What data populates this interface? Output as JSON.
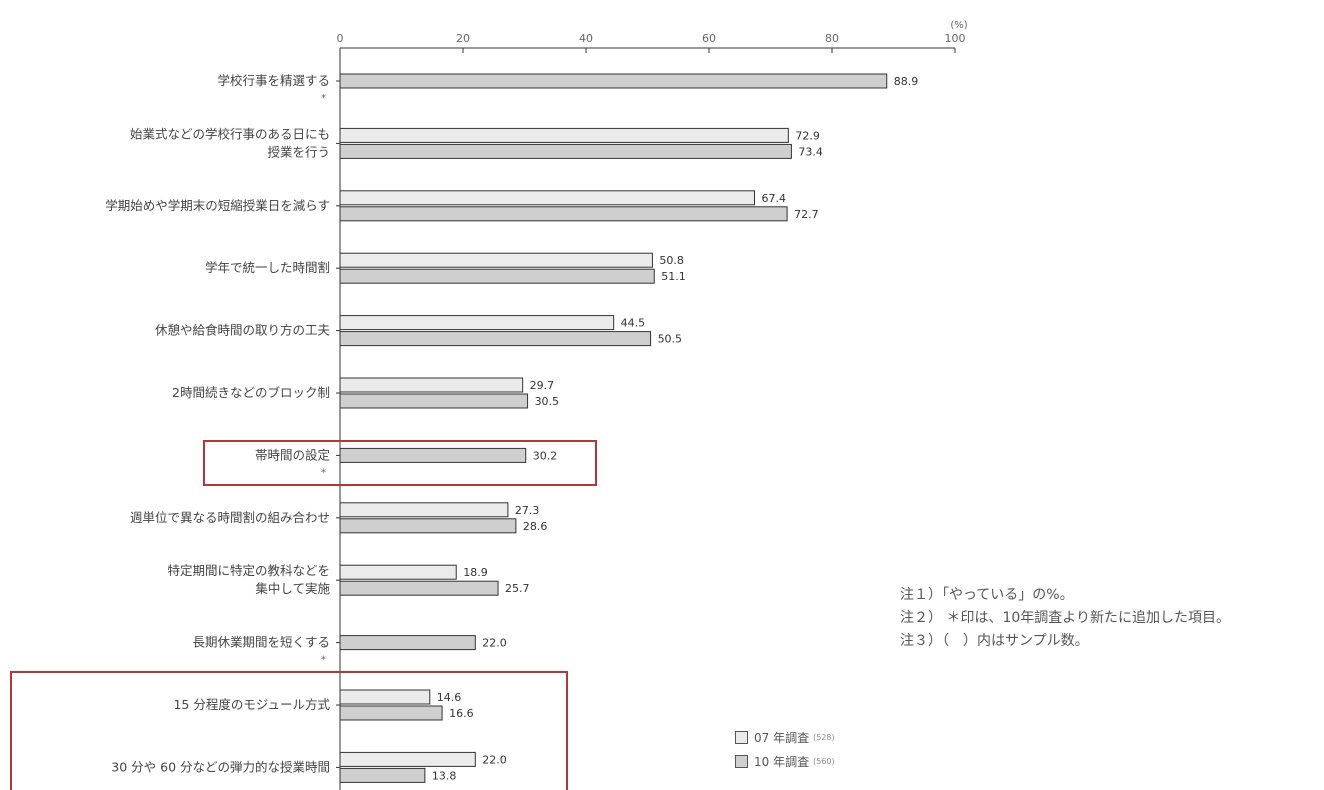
{
  "chart_data": {
    "type": "bar",
    "orientation": "horizontal",
    "unit_label": "(%)",
    "xlim": [
      0,
      100
    ],
    "x_ticks": [
      "0",
      "20",
      "40",
      "60",
      "80",
      "100"
    ],
    "categories": [
      {
        "lines": [
          "学校行事を精選する"
        ],
        "mark": "*"
      },
      {
        "lines": [
          "始業式などの学校行事のある日にも",
          "授業を行う"
        ],
        "mark": ""
      },
      {
        "lines": [
          "学期始めや学期末の短縮授業日を減らす"
        ],
        "mark": ""
      },
      {
        "lines": [
          "学年で統一した時間割"
        ],
        "mark": ""
      },
      {
        "lines": [
          "休憩や給食時間の取り方の工夫"
        ],
        "mark": ""
      },
      {
        "lines": [
          "2時間続きなどのブロック制"
        ],
        "mark": ""
      },
      {
        "lines": [
          "帯時間の設定"
        ],
        "mark": "*"
      },
      {
        "lines": [
          "週単位で異なる時間割の組み合わせ"
        ],
        "mark": ""
      },
      {
        "lines": [
          "特定期間に特定の教科などを",
          "集中して実施"
        ],
        "mark": ""
      },
      {
        "lines": [
          "長期休業期間を短くする"
        ],
        "mark": "*"
      },
      {
        "lines": [
          "15 分程度のモジュール方式"
        ],
        "mark": ""
      },
      {
        "lines": [
          "30 分や 60 分などの弾力的な授業時間"
        ],
        "mark": ""
      }
    ],
    "series": [
      {
        "name": "07 年調査",
        "sample": "(528)",
        "color": "#ebebeb",
        "values": [
          null,
          72.9,
          67.4,
          50.8,
          44.5,
          29.7,
          null,
          27.3,
          18.9,
          null,
          14.6,
          22.0
        ],
        "labels": [
          "",
          "72.9",
          "67.4",
          "50.8",
          "44.5",
          "29.7",
          "",
          "27.3",
          "18.9",
          "",
          "14.6",
          "22.0"
        ]
      },
      {
        "name": "10 年調査",
        "sample": "(560)",
        "color": "#cfcfcf",
        "values": [
          88.9,
          73.4,
          72.7,
          51.1,
          50.5,
          30.5,
          30.2,
          28.6,
          25.7,
          22.0,
          16.6,
          13.8
        ],
        "labels": [
          "88.9",
          "73.4",
          "72.7",
          "51.1",
          "50.5",
          "30.5",
          "30.2",
          "28.6",
          "25.7",
          "22.0",
          "16.6",
          "13.8"
        ]
      }
    ],
    "highlighted_categories": [
      6,
      10,
      11
    ]
  },
  "notes": [
    "注１）「やっている」の%。",
    "注２） ＊印は、10年調査より新たに追加した項目。",
    "注３）（　）内はサンプル数。"
  ]
}
